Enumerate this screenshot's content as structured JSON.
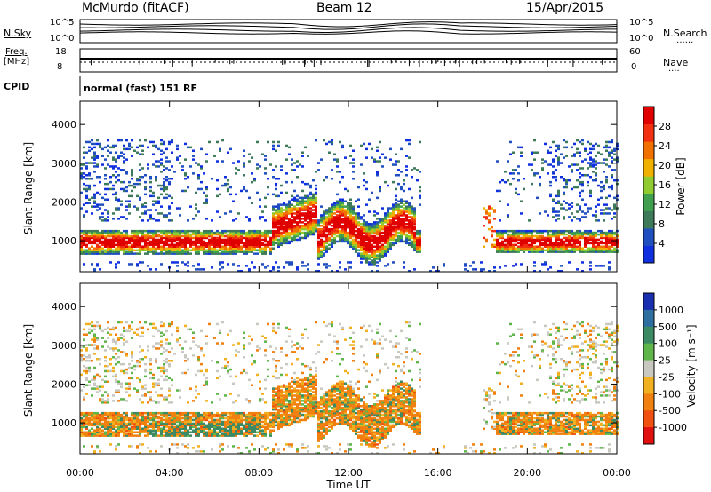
{
  "header": {
    "station": "McMurdo (fitACF)",
    "beam": "Beam 12",
    "date": "15/Apr/2015"
  },
  "panels": {
    "nsky_label": "N.Sky",
    "nsearch_label": "N.Search",
    "nsearch_dots": ".......",
    "freq_label_1": "Freq.",
    "freq_label_2": "[MHz]",
    "nave_label": "Nave",
    "nave_dots": "....",
    "cpid_label": "CPID",
    "cpid_text": "normal (fast) 151 RF",
    "noise_left_ticks": [
      "10^5",
      "10^0"
    ],
    "noise_right_ticks": [
      "10^5",
      "10^0"
    ],
    "freq_ticks": [
      "18",
      "8"
    ],
    "nave_ticks": [
      "60",
      "0"
    ]
  },
  "colors": {
    "power": [
      "#1030e0",
      "#2050c0",
      "#3d7a5a",
      "#40a050",
      "#90cc30",
      "#f0b000",
      "#f07000",
      "#f03010",
      "#e00000"
    ],
    "velocity": [
      "#1a2fb0",
      "#2f6fa0",
      "#3c8a64",
      "#5fb54a",
      "#c8c8c0",
      "#f0b020",
      "#f08010",
      "#f05010",
      "#e01010"
    ]
  },
  "chart_data": [
    {
      "type": "heatmap",
      "title": "",
      "xlabel": "Time UT",
      "ylabel": "Slant Range [km]",
      "x_ticks": [
        "00:00",
        "04:00",
        "08:00",
        "12:00",
        "16:00",
        "20:00",
        "00:00"
      ],
      "y_ticks": [
        1000,
        2000,
        3000,
        4000
      ],
      "ylim": [
        200,
        4600
      ],
      "xlim_hours": [
        0,
        24
      ],
      "colorbar": {
        "label": "Power [dB]",
        "ticks": [
          4,
          8,
          12,
          16,
          20,
          24,
          28
        ],
        "range": [
          0,
          32
        ]
      }
    },
    {
      "type": "heatmap",
      "title": "",
      "xlabel": "Time UT",
      "ylabel": "Slant Range [km]",
      "x_ticks": [
        "00:00",
        "04:00",
        "08:00",
        "12:00",
        "16:00",
        "20:00",
        "00:00"
      ],
      "y_ticks": [
        1000,
        2000,
        3000,
        4000
      ],
      "ylim": [
        200,
        4600
      ],
      "xlim_hours": [
        0,
        24
      ],
      "colorbar": {
        "label": "Velocity [m s⁻¹]",
        "ticks": [
          1000,
          500,
          100,
          25,
          -25,
          -100,
          -500,
          -1000
        ]
      }
    }
  ]
}
